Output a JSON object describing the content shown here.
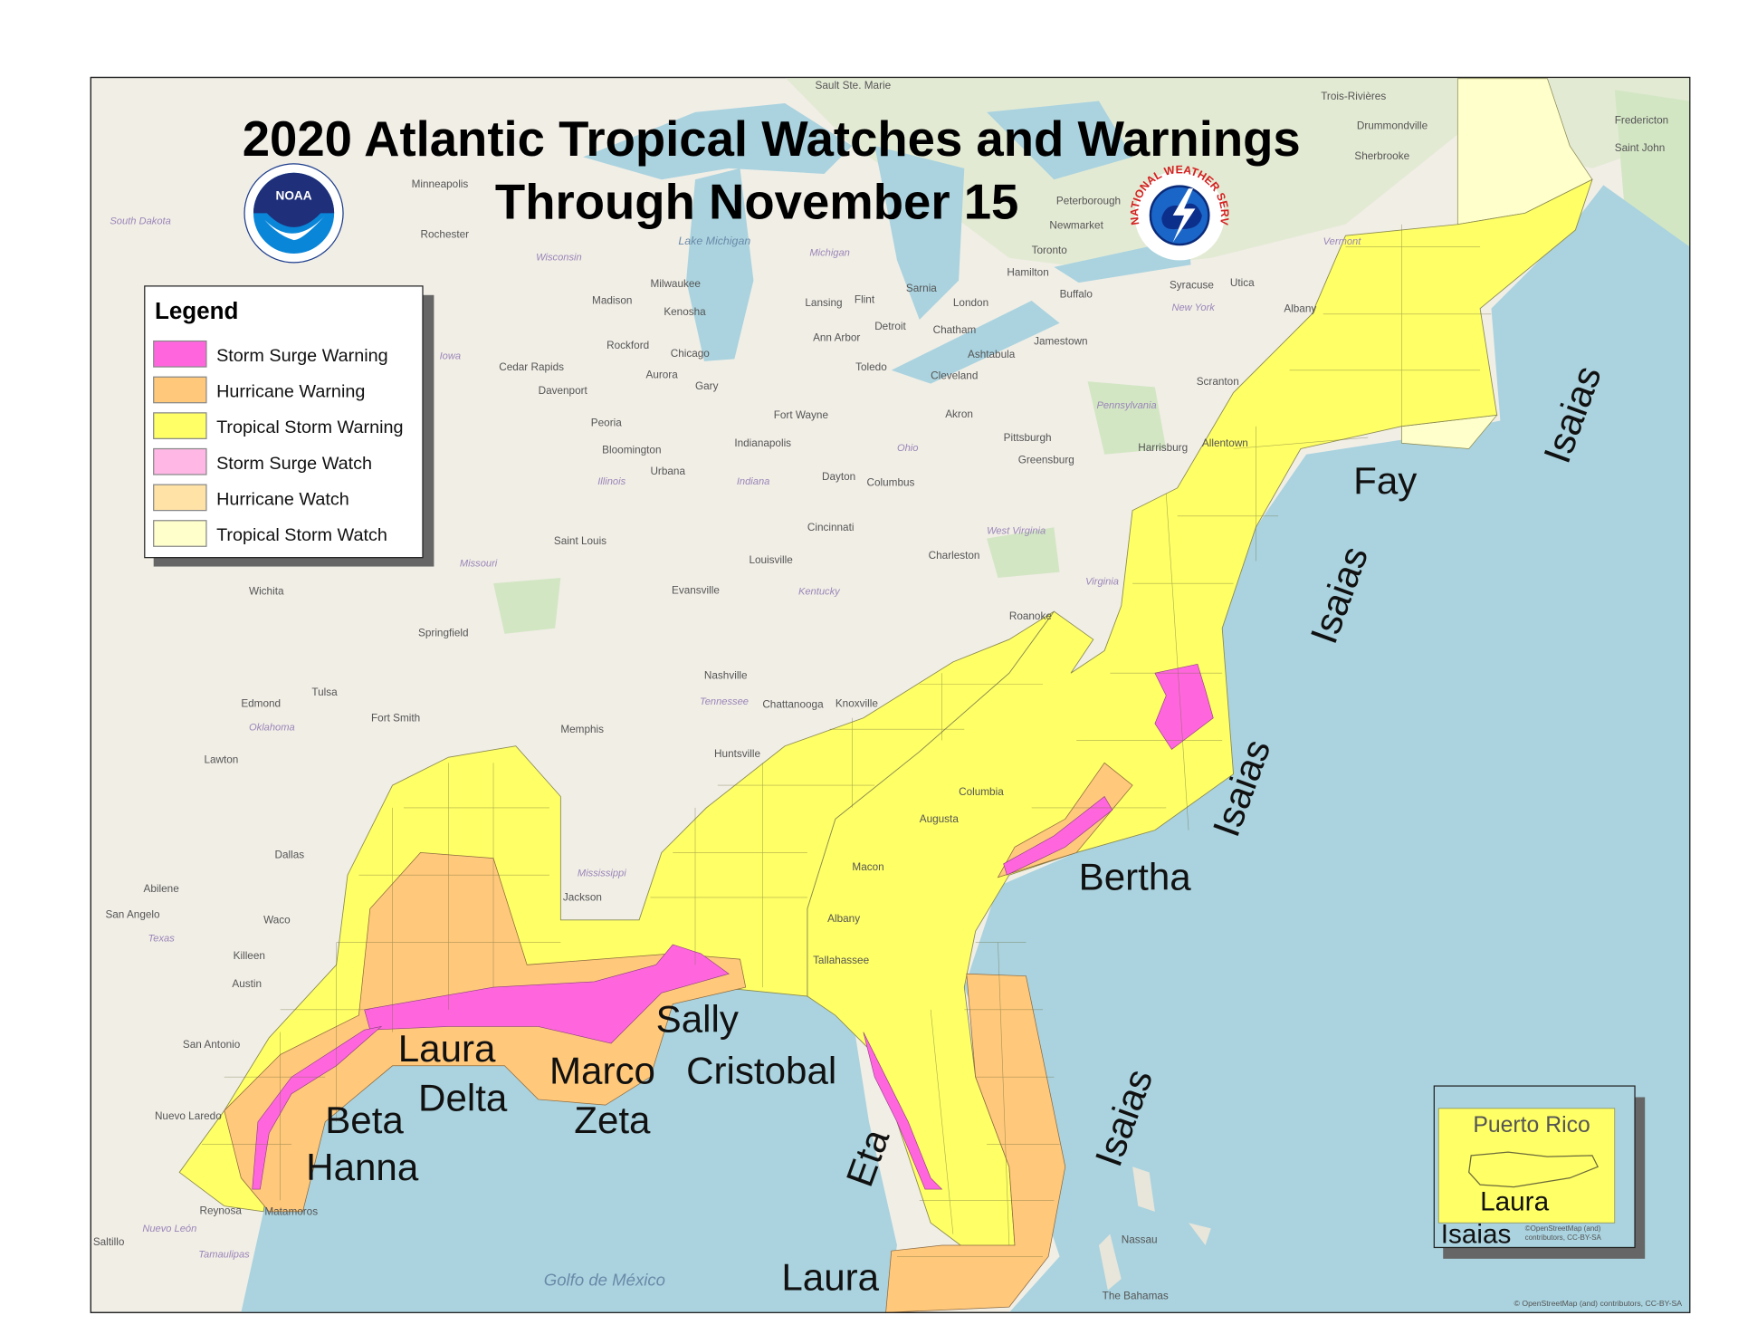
{
  "title": {
    "line1": "2020 Atlantic Tropical Watches and Warnings",
    "line2": "Through November 15"
  },
  "logos": {
    "noaa": {
      "text": "NOAA",
      "ring_text": "NATIONAL OCEANIC AND ATMOSPHERIC ADMINISTRATION · U.S. DEPARTMENT OF COMMERCE"
    },
    "nws": {
      "ring_text": "NATIONAL WEATHER SERVICE"
    }
  },
  "legend": {
    "title": "Legend",
    "items": [
      {
        "label": "Storm Surge Warning",
        "color": "#ff66dd"
      },
      {
        "label": "Hurricane Warning",
        "color": "#ffc87a"
      },
      {
        "label": "Tropical Storm Warning",
        "color": "#ffff66"
      },
      {
        "label": "Storm Surge Watch",
        "color": "#ffb8e6"
      },
      {
        "label": "Hurricane Watch",
        "color": "#ffe3a6"
      },
      {
        "label": "Tropical Storm Watch",
        "color": "#ffffcc"
      }
    ]
  },
  "colors": {
    "land": "#f1eee6",
    "water": "#aad3df",
    "forest": "#d3e6c4"
  },
  "storms": [
    "Fay",
    "Isaias",
    "Isaias",
    "Isaias",
    "Bertha",
    "Isaias",
    "Sally",
    "Cristobal",
    "Marco",
    "Zeta",
    "Laura",
    "Delta",
    "Beta",
    "Hanna",
    "Eta",
    "Laura"
  ],
  "inset": {
    "title": "Puerto Rico",
    "storms": [
      "Laura",
      "Isaias"
    ],
    "attribution": "©OpenStreetMap (and) contributors, CC-BY-SA"
  },
  "attribution": "© OpenStreetMap (and) contributors, CC-BY-SA",
  "water_labels": [
    "Golfo de México",
    "Lake Michigan",
    "The Bahamas"
  ],
  "cities": [
    "Minneapolis",
    "Rochester",
    "Madison",
    "Milwaukee",
    "Chicago",
    "Detroit",
    "Toronto",
    "Hamilton",
    "Buffalo",
    "Cleveland",
    "Columbus",
    "Pittsburgh",
    "Harrisburg",
    "Scranton",
    "Albany",
    "Sherbrooke",
    "Trois-Rivières",
    "Drummondville",
    "Fredericton",
    "Saint John",
    "Louisville",
    "Nashville",
    "Memphis",
    "Knoxville",
    "Charleston",
    "Roanoke",
    "Columbia",
    "Augusta",
    "Macon",
    "Albany",
    "Tallahassee",
    "Jackson",
    "Huntsville",
    "Chattanooga",
    "Dallas",
    "Austin",
    "San Antonio",
    "Waco",
    "Killeen",
    "Tulsa",
    "Fort Smith",
    "Wichita",
    "Springfield",
    "Saint Louis",
    "Evansville",
    "Cincinnati",
    "Dayton",
    "Fort Wayne",
    "Indianapolis",
    "Peoria",
    "Cedar Rapids",
    "Davenport",
    "Nassau",
    "Matamoros",
    "Reynosa",
    "Saltillo",
    "Nuevo Laredo",
    "Sault Ste. Marie",
    "Ann Arbor",
    "Toledo",
    "Akron",
    "Lansing",
    "Flint",
    "Kenosha",
    "Rockford",
    "Aurora",
    "Gary",
    "Urbana",
    "Bloomington",
    "Edmond",
    "Lawton",
    "Abilene",
    "San Angelo",
    "Syracuse",
    "Utica",
    "Peterborough",
    "Newmarket",
    "London",
    "Chatham",
    "Sarnia",
    "Jamestown",
    "Greensburg",
    "Ashtabula",
    "Allentown"
  ],
  "states": [
    "Wisconsin",
    "Michigan",
    "Iowa",
    "Illinois",
    "Indiana",
    "Ohio",
    "Pennsylvania",
    "New York",
    "Vermont",
    "Kentucky",
    "Tennessee",
    "Missouri",
    "Oklahoma",
    "Texas",
    "Mississippi",
    "West Virginia",
    "Virginia",
    "South Dakota",
    "Nuevo León",
    "Tamaulipas"
  ]
}
